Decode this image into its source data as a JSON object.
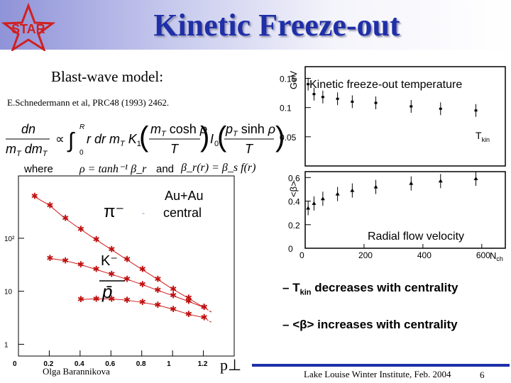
{
  "header": {
    "logo_text": "STAR",
    "title": "Kinetic Freeze-out"
  },
  "model": {
    "heading": "Blast-wave model:",
    "reference": "E.Schnedermann et al,  PRC48 (1993) 2462.",
    "formula_lhs_num": "dn",
    "formula_lhs_den": "m_T dm_T",
    "formula_rhs": "∝ ∫₀ᴿ r dr m_T K₁(m_T cosh ρ / T) I₀(p_T sinh ρ / T)",
    "where_label": "where",
    "where_formula": "ρ = tanh⁻¹ β_r",
    "and_label": "and",
    "and_formula": "β_r(r) = β_s f(r)"
  },
  "spectra": {
    "label_pion": "π⁻",
    "label_kaon": "K⁻",
    "label_pbar": "p̄",
    "system": "Au+Au",
    "system2": "central",
    "x_axis_label": "p⊥",
    "x_ticks": [
      "0",
      "0.2",
      "0.4",
      "0.6",
      "0.8",
      "1",
      "1.2"
    ],
    "y_ticks": [
      "1",
      "10",
      "10²"
    ]
  },
  "tkin_plot": {
    "y_unit": "GeV",
    "title": "Kinetic freeze-out temperature",
    "y_ticks": [
      "0.15",
      "0.1",
      "0.05"
    ],
    "series_label": "T",
    "series_sub": "kin"
  },
  "beta_plot": {
    "y_label": "<β>",
    "title": "Radial flow velocity",
    "y_ticks": [
      "0.6",
      "0.4",
      "0.2",
      "0"
    ],
    "x_ticks": [
      "0",
      "200",
      "400",
      "600"
    ],
    "x_label": "N",
    "x_sub": "ch"
  },
  "bullets": [
    {
      "dash": "–",
      "pre": "T",
      "sub": "kin",
      "post": " decreases with centrality"
    },
    {
      "dash": "–",
      "pre": "<β>",
      "sub": "",
      "post": " increases with centrality"
    }
  ],
  "footer": {
    "author": "Olga Barannikova",
    "conference": "Lake Louise Winter Institute, Feb. 2004",
    "page": "6"
  },
  "chart_data": [
    {
      "type": "scatter",
      "title": "Kinetic freeze-out temperature",
      "ylabel": "GeV",
      "series": [
        {
          "name": "T_kin",
          "x": [
            10,
            30,
            60,
            110,
            160,
            240,
            360,
            460,
            580
          ],
          "values": [
            0.14,
            0.123,
            0.118,
            0.115,
            0.11,
            0.108,
            0.102,
            0.098,
            0.095
          ]
        }
      ],
      "xlim": [
        0,
        680
      ],
      "ylim": [
        0.0,
        0.17
      ]
    },
    {
      "type": "scatter",
      "title": "Radial flow velocity",
      "ylabel": "<β>",
      "xlabel": "N_ch",
      "series": [
        {
          "name": "<β>",
          "x": [
            10,
            30,
            60,
            110,
            160,
            240,
            360,
            460,
            580
          ],
          "values": [
            0.34,
            0.38,
            0.42,
            0.46,
            0.49,
            0.52,
            0.55,
            0.57,
            0.59
          ]
        }
      ],
      "xlim": [
        0,
        680
      ],
      "ylim": [
        0.0,
        0.65
      ]
    },
    {
      "type": "line",
      "title": "",
      "xlabel": "p⊥",
      "ylog": true,
      "series": [
        {
          "name": "π⁻",
          "x": [
            0.1,
            0.2,
            0.3,
            0.4,
            0.5,
            0.6,
            0.7,
            0.8,
            0.9,
            1.0,
            1.1,
            1.2
          ],
          "values": [
            620,
            420,
            240,
            150,
            95,
            62,
            40,
            26,
            17,
            11,
            7.5,
            5
          ]
        },
        {
          "name": "K⁻",
          "x": [
            0.2,
            0.3,
            0.4,
            0.5,
            0.6,
            0.7,
            0.8,
            0.9,
            1.0,
            1.1,
            1.2
          ],
          "values": [
            42,
            38,
            32,
            26,
            21,
            17,
            13.5,
            10.5,
            8.3,
            6.5,
            5
          ]
        },
        {
          "name": "p̄",
          "x": [
            0.4,
            0.5,
            0.6,
            0.7,
            0.8,
            0.9,
            1.0,
            1.1,
            1.2
          ],
          "values": [
            7,
            7.2,
            7.2,
            6.8,
            6.2,
            5.5,
            4.6,
            3.7,
            3.2
          ]
        }
      ],
      "xlim": [
        0,
        1.4
      ],
      "ylim": [
        0.6,
        1500
      ]
    }
  ]
}
